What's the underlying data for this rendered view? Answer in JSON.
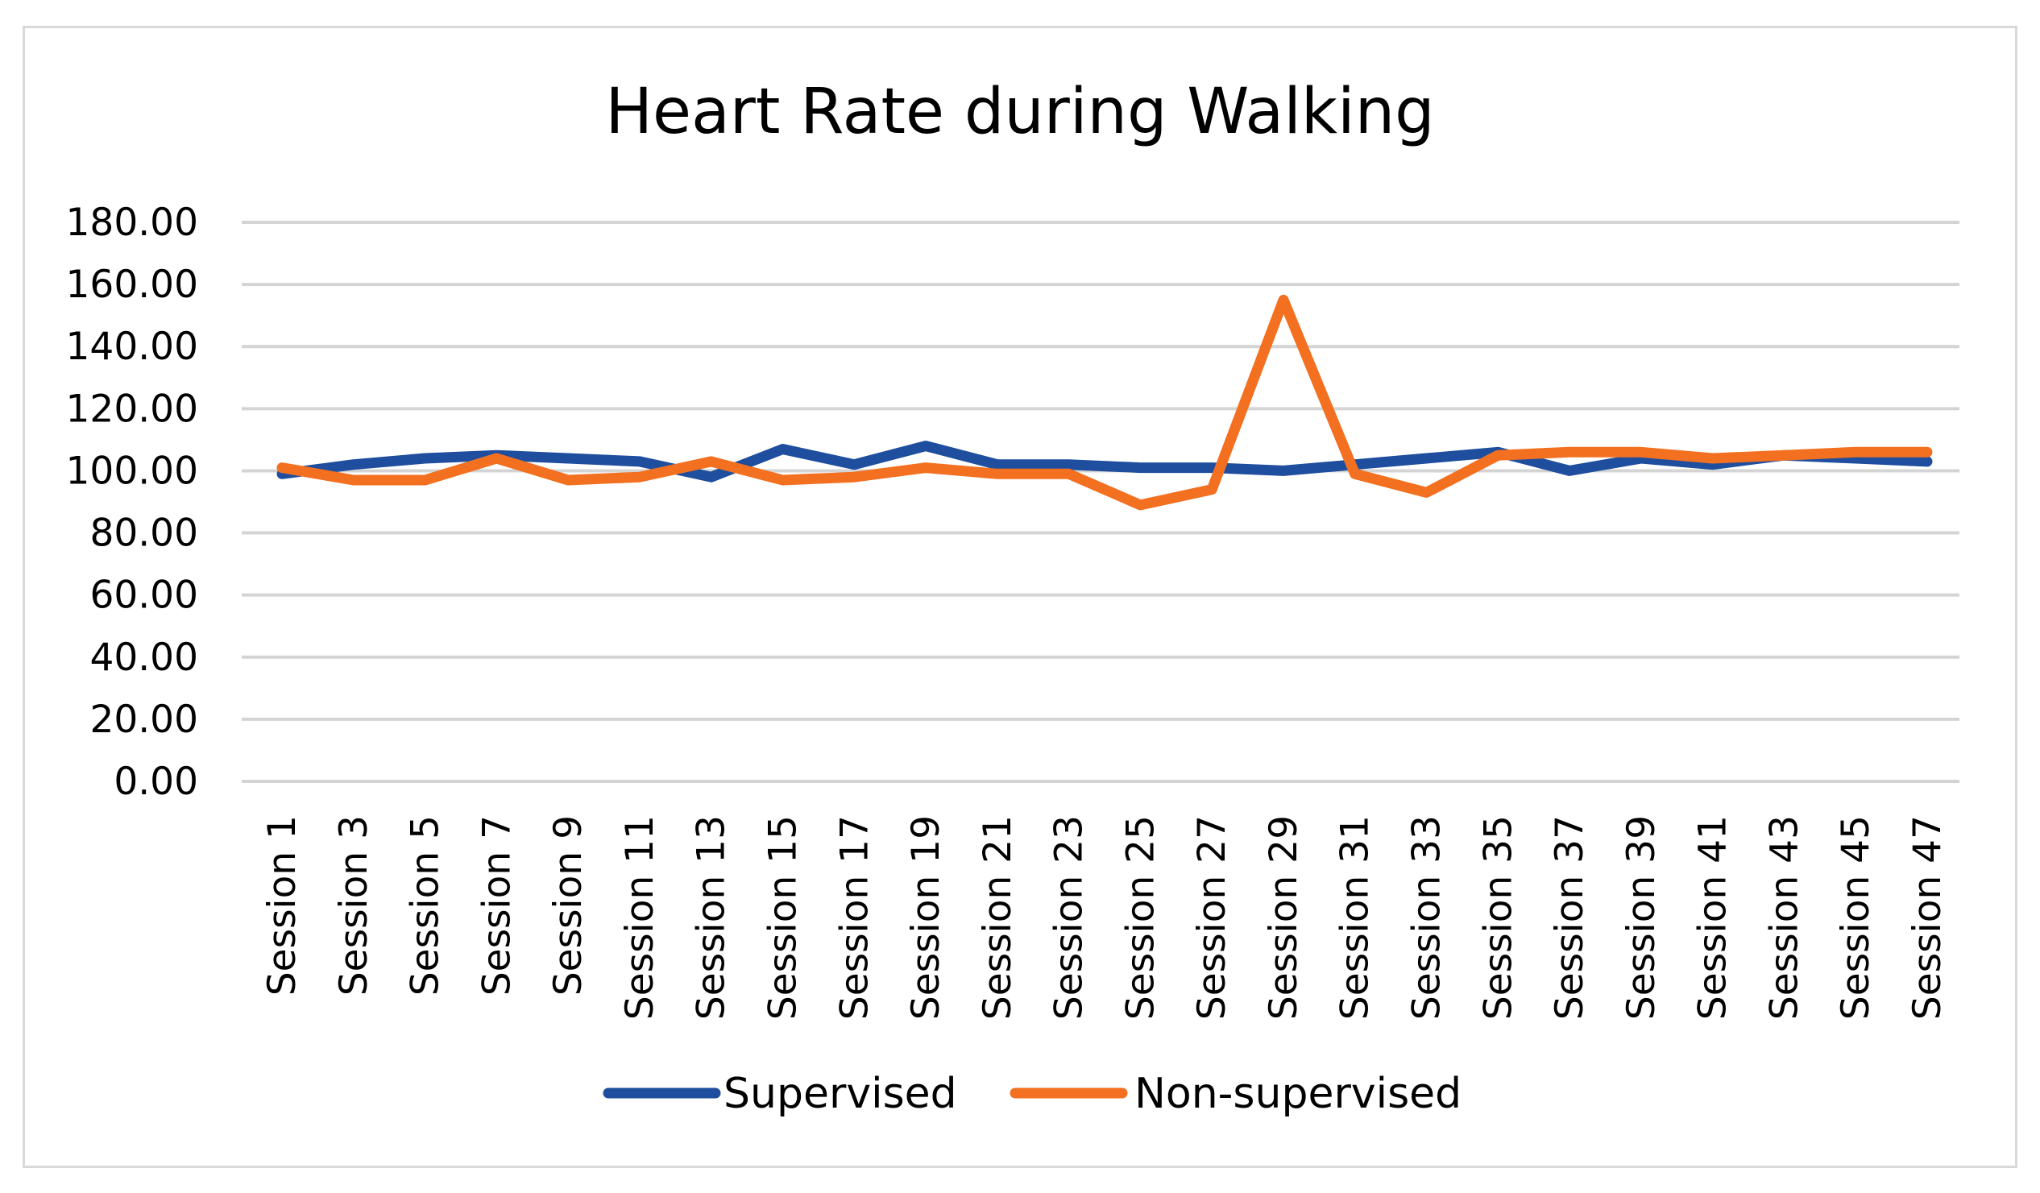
{
  "chart_data": {
    "type": "line",
    "title": "Heart Rate during Walking",
    "xlabel": "",
    "ylabel": "",
    "ylim": [
      0,
      180
    ],
    "yticks": [
      "0.00",
      "20.00",
      "40.00",
      "60.00",
      "80.00",
      "100.00",
      "120.00",
      "140.00",
      "160.00",
      "180.00"
    ],
    "ytick_values": [
      0,
      20,
      40,
      60,
      80,
      100,
      120,
      140,
      160,
      180
    ],
    "categories": [
      "Session 1",
      "Session 3",
      "Session 5",
      "Session 7",
      "Session 9",
      "Session 11",
      "Session 13",
      "Session 15",
      "Session 17",
      "Session 19",
      "Session 21",
      "Session 23",
      "Session 25",
      "Session 27",
      "Session 29",
      "Session 31",
      "Session 33",
      "Session 35",
      "Session 37",
      "Session 39",
      "Session 41",
      "Session 43",
      "Session 45",
      "Session 47"
    ],
    "grid": true,
    "legend_position": "bottom",
    "series": [
      {
        "name": "Supervised",
        "color": "#1f4e9e",
        "values": [
          99,
          102,
          104,
          105,
          104,
          103,
          98,
          107,
          102,
          108,
          102,
          102,
          101,
          101,
          100,
          102,
          104,
          106,
          100,
          104,
          102,
          105,
          104,
          103
        ]
      },
      {
        "name": "Non-supervised",
        "color": "#f37021",
        "values": [
          101,
          97,
          97,
          104,
          97,
          98,
          103,
          97,
          98,
          101,
          99,
          99,
          89,
          94,
          155,
          99,
          93,
          105,
          106,
          106,
          104,
          105,
          106,
          106
        ]
      }
    ]
  }
}
